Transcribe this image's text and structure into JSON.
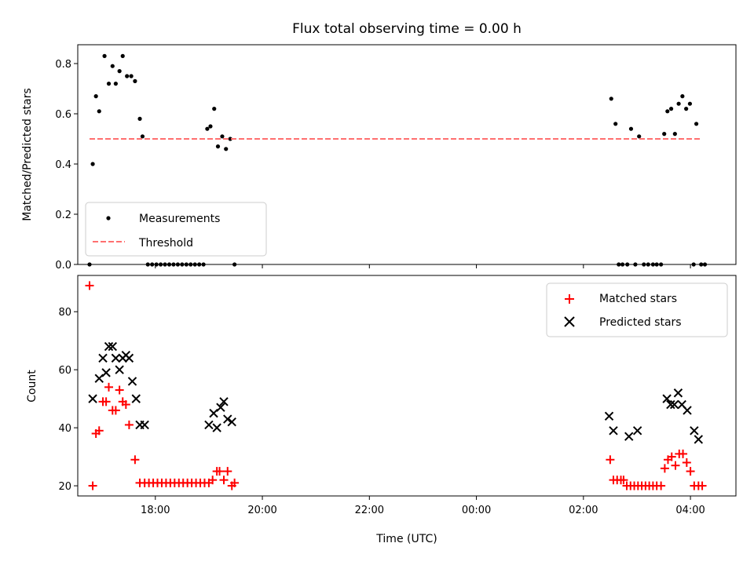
{
  "chart_data": [
    {
      "type": "scatter",
      "title": "Flux total observing time = 0.00 h",
      "xlabel": "",
      "ylabel": "Matched/Predicted stars",
      "xlim": [
        -7.45,
        4.85
      ],
      "ylim": [
        0.0,
        0.875
      ],
      "yticks": [
        0.0,
        0.2,
        0.4,
        0.6,
        0.8
      ],
      "ytick_labels": [
        "0.0",
        "0.2",
        "0.4",
        "0.6",
        "0.8"
      ],
      "xticks": [
        -6,
        -4,
        -2,
        0,
        2,
        4
      ],
      "xtick_labels": [
        "",
        "",
        "",
        "",
        "",
        ""
      ],
      "legend": "lower-left",
      "series": [
        {
          "name": "Measurements",
          "color": "#000000",
          "marker": "dot",
          "x": [
            -7.23,
            -7.17,
            -7.11,
            -7.05,
            -6.95,
            -6.87,
            -6.8,
            -6.74,
            -6.67,
            -6.61,
            -6.53,
            -6.45,
            -6.38,
            -6.29,
            -6.24,
            -6.14,
            -6.06,
            -5.98,
            -5.9,
            -5.82,
            -5.74,
            -5.66,
            -5.58,
            -5.5,
            -5.42,
            -5.34,
            -5.26,
            -5.18,
            -5.1,
            -5.03,
            -4.97,
            -4.9,
            -4.83,
            -4.75,
            -4.68,
            -4.6,
            -4.52,
            2.52,
            2.6,
            2.66,
            2.73,
            2.82,
            2.89,
            2.97,
            3.04,
            3.13,
            3.21,
            3.3,
            3.37,
            3.45,
            3.51,
            3.57,
            3.64,
            3.71,
            3.78,
            3.85,
            3.92,
            3.99,
            4.06,
            4.11,
            4.2,
            4.27
          ],
          "y": [
            0.0,
            0.4,
            0.67,
            0.61,
            0.83,
            0.72,
            0.79,
            0.72,
            0.77,
            0.83,
            0.75,
            0.75,
            0.73,
            0.58,
            0.51,
            0.0,
            0.0,
            0.0,
            0.0,
            0.0,
            0.0,
            0.0,
            0.0,
            0.0,
            0.0,
            0.0,
            0.0,
            0.0,
            0.0,
            0.54,
            0.55,
            0.62,
            0.47,
            0.51,
            0.46,
            0.5,
            0.0,
            0.66,
            0.56,
            0.0,
            0.0,
            0.0,
            0.54,
            0.0,
            0.51,
            0.0,
            0.0,
            0.0,
            0.0,
            0.0,
            0.52,
            0.61,
            0.62,
            0.52,
            0.64,
            0.67,
            0.62,
            0.64,
            0.0,
            0.56,
            0.0,
            0.0
          ]
        },
        {
          "name": "Threshold",
          "color": "#ff7070",
          "style": "dashed",
          "x": [
            -7.23,
            4.2
          ],
          "y": [
            0.5,
            0.5
          ]
        }
      ]
    },
    {
      "type": "scatter",
      "title": "",
      "xlabel": "Time (UTC)",
      "ylabel": "Count",
      "xlim": [
        -7.45,
        4.85
      ],
      "ylim": [
        16.5,
        92.5
      ],
      "yticks": [
        20,
        40,
        60,
        80
      ],
      "ytick_labels": [
        "20",
        "40",
        "60",
        "80"
      ],
      "xticks": [
        -6,
        -4,
        -2,
        0,
        2,
        4
      ],
      "xtick_labels": [
        "18:00",
        "20:00",
        "22:00",
        "00:00",
        "02:00",
        "04:00"
      ],
      "legend": "top-right",
      "series": [
        {
          "name": "Matched stars",
          "color": "#ff0000",
          "marker": "plus",
          "x": [
            -7.23,
            -7.17,
            -7.11,
            -7.05,
            -6.98,
            -6.92,
            -6.87,
            -6.8,
            -6.74,
            -6.67,
            -6.61,
            -6.55,
            -6.49,
            -6.38,
            -6.29,
            -6.2,
            -6.12,
            -6.04,
            -5.96,
            -5.88,
            -5.8,
            -5.72,
            -5.64,
            -5.56,
            -5.48,
            -5.4,
            -5.32,
            -5.24,
            -5.16,
            -5.08,
            -5.0,
            -4.93,
            -4.85,
            -4.8,
            -4.72,
            -4.65,
            -4.57,
            -4.52,
            2.5,
            2.56,
            2.63,
            2.7,
            2.75,
            2.81,
            2.88,
            2.95,
            3.02,
            3.09,
            3.16,
            3.23,
            3.3,
            3.37,
            3.45,
            3.52,
            3.58,
            3.65,
            3.72,
            3.79,
            3.86,
            3.93,
            4.0,
            4.07,
            4.15,
            4.22
          ],
          "y": [
            89,
            20,
            38,
            39,
            49,
            49,
            54,
            46,
            46,
            53,
            49,
            48,
            41,
            29,
            21,
            21,
            21,
            21,
            21,
            21,
            21,
            21,
            21,
            21,
            21,
            21,
            21,
            21,
            21,
            21,
            21,
            22,
            25,
            25,
            22,
            25,
            20,
            21,
            29,
            22,
            22,
            22,
            22,
            20,
            20,
            20,
            20,
            20,
            20,
            20,
            20,
            20,
            20,
            26,
            29,
            30,
            27,
            31,
            31,
            28,
            25,
            20,
            20,
            20
          ]
        },
        {
          "name": "Predicted stars",
          "color": "#000000",
          "marker": "x",
          "x": [
            -7.17,
            -7.05,
            -6.98,
            -6.92,
            -6.87,
            -6.8,
            -6.74,
            -6.67,
            -6.61,
            -6.55,
            -6.49,
            -6.43,
            -6.36,
            -6.29,
            -6.2,
            -5.0,
            -4.91,
            -4.85,
            -4.78,
            -4.72,
            -4.65,
            -4.57,
            2.48,
            2.56,
            2.85,
            3.01,
            3.56,
            3.63,
            3.7,
            3.77,
            3.84,
            3.94,
            4.07,
            4.15
          ],
          "y": [
            50,
            57,
            64,
            59,
            68,
            68,
            64,
            60,
            64,
            65,
            64,
            56,
            50,
            41,
            41,
            41,
            45,
            40,
            47,
            49,
            43,
            42,
            44,
            39,
            37,
            39,
            50,
            48,
            48,
            52,
            48,
            46,
            39,
            36
          ]
        }
      ]
    }
  ]
}
